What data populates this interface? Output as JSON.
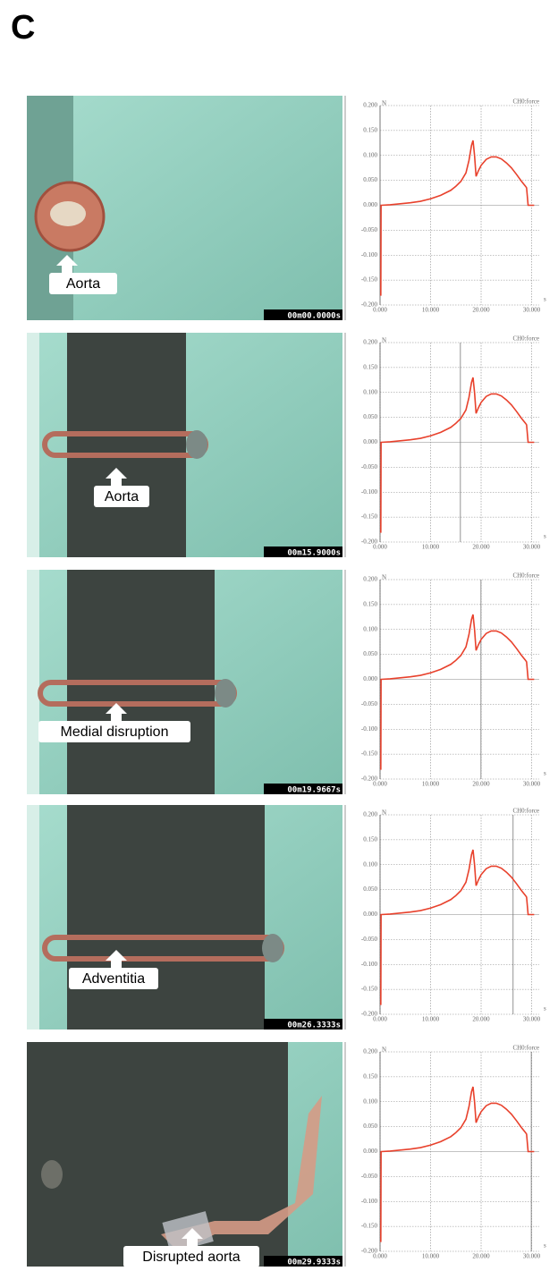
{
  "figure_label": "C",
  "photos": [
    {
      "label": "Aorta",
      "timestamp": "00m00.0000s"
    },
    {
      "label": "Aorta",
      "timestamp": "00m15.9000s"
    },
    {
      "label": "Medial disruption",
      "timestamp": "00m19.9667s"
    },
    {
      "label": "Adventitia",
      "timestamp": "00m26.3333s"
    },
    {
      "label": "Disrupted aorta",
      "timestamp": "00m29.9333s"
    }
  ],
  "chart_data": [
    {
      "type": "line",
      "channel_label": "CH0:force",
      "y_unit": "N",
      "x_unit": "s",
      "color": "#e8412c",
      "grid": true,
      "cursor_x": 0,
      "x": [
        0,
        0.15,
        0.2,
        0.25,
        2,
        4,
        6,
        8,
        10,
        12,
        14,
        15,
        16,
        17,
        17.6,
        18.1,
        18.4,
        18.7,
        19.0,
        19.5,
        20,
        21,
        22,
        23,
        24,
        25,
        26,
        27,
        28,
        28.8,
        29.0,
        29.3,
        30.5
      ],
      "values": [
        -0.18,
        -0.18,
        0,
        0,
        0.001,
        0.003,
        0.005,
        0.008,
        0.013,
        0.02,
        0.03,
        0.038,
        0.048,
        0.065,
        0.09,
        0.12,
        0.13,
        0.1,
        0.058,
        0.07,
        0.08,
        0.092,
        0.097,
        0.097,
        0.093,
        0.085,
        0.075,
        0.062,
        0.048,
        0.038,
        0.035,
        0,
        0
      ],
      "xlim": [
        0,
        31.5
      ],
      "ylim": [
        -0.2,
        0.2
      ],
      "xticks": [
        {
          "value": 0,
          "label": "0.000"
        },
        {
          "value": 10,
          "label": "10.000"
        },
        {
          "value": 20,
          "label": "20.000"
        },
        {
          "value": 30,
          "label": "30.000"
        }
      ],
      "yticks": [
        {
          "value": 0.2,
          "label": "0.200"
        },
        {
          "value": 0.15,
          "label": "0.150"
        },
        {
          "value": 0.1,
          "label": "0.100"
        },
        {
          "value": 0.05,
          "label": "0.050"
        },
        {
          "value": 0,
          "label": "0.000"
        },
        {
          "value": -0.05,
          "label": "-0.050"
        },
        {
          "value": -0.1,
          "label": "-0.100"
        },
        {
          "value": -0.15,
          "label": "-0.150"
        },
        {
          "value": -0.2,
          "label": "-0.200"
        }
      ]
    },
    {
      "type": "line",
      "channel_label": "CH0:force",
      "y_unit": "N",
      "x_unit": "s",
      "color": "#e8412c",
      "grid": true,
      "cursor_x": 15.9,
      "x": [
        0,
        0.15,
        0.2,
        0.25,
        2,
        4,
        6,
        8,
        10,
        12,
        14,
        15,
        16,
        17,
        17.6,
        18.1,
        18.4,
        18.7,
        19.0,
        19.5,
        20,
        21,
        22,
        23,
        24,
        25,
        26,
        27,
        28,
        28.8,
        29.0,
        29.3,
        30.5
      ],
      "values": [
        -0.18,
        -0.18,
        0,
        0,
        0.001,
        0.003,
        0.005,
        0.008,
        0.013,
        0.02,
        0.03,
        0.038,
        0.048,
        0.065,
        0.09,
        0.12,
        0.13,
        0.1,
        0.058,
        0.07,
        0.08,
        0.092,
        0.097,
        0.097,
        0.093,
        0.085,
        0.075,
        0.062,
        0.048,
        0.038,
        0.035,
        0,
        0
      ],
      "xlim": [
        0,
        31.5
      ],
      "ylim": [
        -0.2,
        0.2
      ],
      "xticks": [
        {
          "value": 0,
          "label": "0.000"
        },
        {
          "value": 10,
          "label": "10.000"
        },
        {
          "value": 20,
          "label": "20.000"
        },
        {
          "value": 30,
          "label": "30.000"
        }
      ],
      "yticks": [
        {
          "value": 0.2,
          "label": "0.200"
        },
        {
          "value": 0.15,
          "label": "0.150"
        },
        {
          "value": 0.1,
          "label": "0.100"
        },
        {
          "value": 0.05,
          "label": "0.050"
        },
        {
          "value": 0,
          "label": "0.000"
        },
        {
          "value": -0.05,
          "label": "-0.050"
        },
        {
          "value": -0.1,
          "label": "-0.100"
        },
        {
          "value": -0.15,
          "label": "-0.150"
        },
        {
          "value": -0.2,
          "label": "-0.200"
        }
      ]
    },
    {
      "type": "line",
      "channel_label": "CH0:force",
      "y_unit": "N",
      "x_unit": "s",
      "color": "#e8412c",
      "grid": true,
      "cursor_x": 19.97,
      "x": [
        0,
        0.15,
        0.2,
        0.25,
        2,
        4,
        6,
        8,
        10,
        12,
        14,
        15,
        16,
        17,
        17.6,
        18.1,
        18.4,
        18.7,
        19.0,
        19.5,
        20,
        21,
        22,
        23,
        24,
        25,
        26,
        27,
        28,
        28.8,
        29.0,
        29.3,
        30.5
      ],
      "values": [
        -0.18,
        -0.18,
        0,
        0,
        0.001,
        0.003,
        0.005,
        0.008,
        0.013,
        0.02,
        0.03,
        0.038,
        0.048,
        0.065,
        0.09,
        0.12,
        0.13,
        0.1,
        0.058,
        0.07,
        0.08,
        0.092,
        0.097,
        0.097,
        0.093,
        0.085,
        0.075,
        0.062,
        0.048,
        0.038,
        0.035,
        0,
        0
      ],
      "xlim": [
        0,
        31.5
      ],
      "ylim": [
        -0.2,
        0.2
      ],
      "xticks": [
        {
          "value": 0,
          "label": "0.000"
        },
        {
          "value": 10,
          "label": "10.000"
        },
        {
          "value": 20,
          "label": "20.000"
        },
        {
          "value": 30,
          "label": "30.000"
        }
      ],
      "yticks": [
        {
          "value": 0.2,
          "label": "0.200"
        },
        {
          "value": 0.15,
          "label": "0.150"
        },
        {
          "value": 0.1,
          "label": "0.100"
        },
        {
          "value": 0.05,
          "label": "0.050"
        },
        {
          "value": 0,
          "label": "0.000"
        },
        {
          "value": -0.05,
          "label": "-0.050"
        },
        {
          "value": -0.1,
          "label": "-0.100"
        },
        {
          "value": -0.15,
          "label": "-0.150"
        },
        {
          "value": -0.2,
          "label": "-0.200"
        }
      ]
    },
    {
      "type": "line",
      "channel_label": "CH0:force",
      "y_unit": "N",
      "x_unit": "s",
      "color": "#e8412c",
      "grid": true,
      "cursor_x": 26.33,
      "x": [
        0,
        0.15,
        0.2,
        0.25,
        2,
        4,
        6,
        8,
        10,
        12,
        14,
        15,
        16,
        17,
        17.6,
        18.1,
        18.4,
        18.7,
        19.0,
        19.5,
        20,
        21,
        22,
        23,
        24,
        25,
        26,
        27,
        28,
        28.8,
        29.0,
        29.3,
        30.5
      ],
      "values": [
        -0.18,
        -0.18,
        0,
        0,
        0.001,
        0.003,
        0.005,
        0.008,
        0.013,
        0.02,
        0.03,
        0.038,
        0.048,
        0.065,
        0.09,
        0.12,
        0.13,
        0.1,
        0.058,
        0.07,
        0.08,
        0.092,
        0.097,
        0.097,
        0.093,
        0.085,
        0.075,
        0.062,
        0.048,
        0.038,
        0.035,
        0,
        0
      ],
      "xlim": [
        0,
        31.5
      ],
      "ylim": [
        -0.2,
        0.2
      ],
      "xticks": [
        {
          "value": 0,
          "label": "0.000"
        },
        {
          "value": 10,
          "label": "10.000"
        },
        {
          "value": 20,
          "label": "20.000"
        },
        {
          "value": 30,
          "label": "30.000"
        }
      ],
      "yticks": [
        {
          "value": 0.2,
          "label": "0.200"
        },
        {
          "value": 0.15,
          "label": "0.150"
        },
        {
          "value": 0.1,
          "label": "0.100"
        },
        {
          "value": 0.05,
          "label": "0.050"
        },
        {
          "value": 0,
          "label": "0.000"
        },
        {
          "value": -0.05,
          "label": "-0.050"
        },
        {
          "value": -0.1,
          "label": "-0.100"
        },
        {
          "value": -0.15,
          "label": "-0.150"
        },
        {
          "value": -0.2,
          "label": "-0.200"
        }
      ]
    },
    {
      "type": "line",
      "channel_label": "CH0:force",
      "y_unit": "N",
      "x_unit": "s",
      "color": "#e8412c",
      "grid": true,
      "cursor_x": 29.93,
      "x": [
        0,
        0.15,
        0.2,
        0.25,
        2,
        4,
        6,
        8,
        10,
        12,
        14,
        15,
        16,
        17,
        17.6,
        18.1,
        18.4,
        18.7,
        19.0,
        19.5,
        20,
        21,
        22,
        23,
        24,
        25,
        26,
        27,
        28,
        28.8,
        29.0,
        29.3,
        30.5
      ],
      "values": [
        -0.18,
        -0.18,
        0,
        0,
        0.001,
        0.003,
        0.005,
        0.008,
        0.013,
        0.02,
        0.03,
        0.038,
        0.048,
        0.065,
        0.09,
        0.12,
        0.13,
        0.1,
        0.058,
        0.07,
        0.08,
        0.092,
        0.097,
        0.097,
        0.093,
        0.085,
        0.075,
        0.062,
        0.048,
        0.038,
        0.035,
        0,
        0
      ],
      "xlim": [
        0,
        31.5
      ],
      "ylim": [
        -0.2,
        0.2
      ],
      "xticks": [
        {
          "value": 0,
          "label": "0.000"
        },
        {
          "value": 10,
          "label": "10.000"
        },
        {
          "value": 20,
          "label": "20.000"
        },
        {
          "value": 30,
          "label": "30.000"
        }
      ],
      "yticks": [
        {
          "value": 0.2,
          "label": "0.200"
        },
        {
          "value": 0.15,
          "label": "0.150"
        },
        {
          "value": 0.1,
          "label": "0.100"
        },
        {
          "value": 0.05,
          "label": "0.050"
        },
        {
          "value": 0,
          "label": "0.000"
        },
        {
          "value": -0.05,
          "label": "-0.050"
        },
        {
          "value": -0.1,
          "label": "-0.100"
        },
        {
          "value": -0.15,
          "label": "-0.150"
        },
        {
          "value": -0.2,
          "label": "-0.200"
        }
      ]
    }
  ]
}
